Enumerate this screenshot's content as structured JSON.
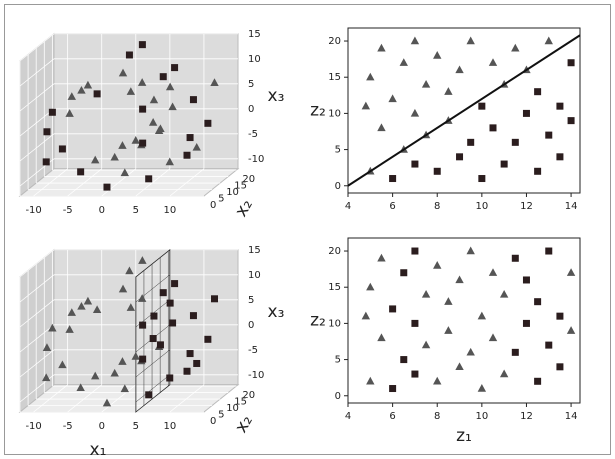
{
  "chart_data": [
    {
      "type": "scatter3d",
      "xlim": [
        -12,
        15
      ],
      "ylim": [
        0,
        21
      ],
      "zlim": [
        -12,
        15
      ],
      "xticks": [
        -10,
        -5,
        0,
        5,
        10
      ],
      "yticks": [
        0,
        5,
        10,
        15,
        20
      ],
      "zticks": [
        -10,
        -5,
        0,
        5,
        10,
        15
      ],
      "ylabel": "x₂",
      "zlabel": "x₃",
      "series": [
        {
          "marker": "triangle",
          "color": "#555555",
          "x": [
            1.42,
            1.42,
            3.9,
            3.9,
            5.76,
            6.35,
            6.35,
            5.28,
            5.28,
            2.6,
            2.6,
            -1.16,
            -5.12,
            -5.12,
            -8.2,
            -9.47,
            -5.0,
            0.05,
            5.46,
            10.13,
            11.79,
            0.42
          ],
          "y": [
            2,
            15,
            8,
            19,
            12,
            5,
            17,
            10,
            20,
            7,
            14,
            18,
            9,
            13,
            16,
            20,
            17,
            14,
            19,
            16,
            20,
            11
          ],
          "z": [
            -4.79,
            -4.79,
            -3.88,
            -3.88,
            -1.68,
            1.4,
            1.4,
            4.6,
            4.6,
            7.04,
            7.04,
            7.91,
            6.78,
            6.78,
            3.71,
            -0.71,
            -9.24,
            -11.0,
            -10.12,
            -6.44,
            5.46,
            -4.78
          ]
        },
        {
          "marker": "square",
          "color": "#2b1d1e",
          "x": [
            5.76,
            5.28,
            -1.16,
            -8.2,
            -9.47,
            -8.39,
            -8.39,
            -5.0,
            0.05,
            5.46,
            10.13,
            12.48,
            12.48,
            11.79,
            8.07,
            8.07,
            1.92,
            1.92
          ],
          "y": [
            1,
            3,
            2,
            4,
            6,
            1,
            11,
            8,
            3,
            6,
            10,
            2,
            13,
            7,
            4,
            11,
            9,
            17
          ],
          "z": [
            -1.68,
            4.6,
            7.91,
            3.71,
            -0.71,
            -5.44,
            -5.44,
            -9.24,
            -11.0,
            -10.12,
            -6.44,
            -0.83,
            -0.83,
            5.46,
            10.83,
            10.83,
            13.87,
            13.87
          ]
        }
      ]
    },
    {
      "type": "scatter",
      "xlim": [
        4,
        14.4
      ],
      "ylim": [
        -1,
        21.8
      ],
      "xticks": [
        4,
        6,
        8,
        10,
        12,
        14
      ],
      "yticks": [
        0,
        5,
        10,
        15,
        20
      ],
      "ylabel": "z₂",
      "line": {
        "color": "#111111",
        "x": [
          4,
          14.4
        ],
        "y": [
          0,
          20.8
        ]
      },
      "series": [
        {
          "marker": "triangle",
          "color": "#555555",
          "x": [
            5,
            5,
            5.5,
            5.5,
            6,
            6.5,
            6.5,
            7,
            7,
            7.5,
            7.5,
            8,
            8.5,
            8.5,
            9,
            9.5,
            10.5,
            11,
            11.5,
            12,
            13,
            4.8
          ],
          "y": [
            2,
            15,
            8,
            19,
            12,
            5,
            17,
            10,
            20,
            7,
            14,
            18,
            9,
            13,
            16,
            20,
            17,
            14,
            19,
            16,
            20,
            11
          ]
        },
        {
          "marker": "square",
          "color": "#2b1d1e",
          "x": [
            6,
            7,
            8,
            9,
            9.5,
            10,
            10,
            10.5,
            11,
            11.5,
            12,
            12.5,
            12.5,
            13,
            13.5,
            13.5,
            14,
            14
          ],
          "y": [
            1,
            3,
            2,
            4,
            6,
            1,
            11,
            8,
            3,
            6,
            10,
            2,
            13,
            7,
            4,
            11,
            9,
            17
          ]
        }
      ]
    },
    {
      "type": "scatter3d",
      "xlim": [
        -12,
        15
      ],
      "ylim": [
        0,
        21
      ],
      "zlim": [
        -12,
        15
      ],
      "xticks": [
        -10,
        -5,
        0,
        5,
        10
      ],
      "yticks": [
        0,
        5,
        10,
        15,
        20
      ],
      "zticks": [
        -10,
        -5,
        0,
        5,
        10,
        15
      ],
      "xlabel": "x₁",
      "ylabel": "x₂",
      "zlabel": "x₃",
      "plane_x": 5,
      "series": [
        {
          "marker": "triangle",
          "color": "#555555",
          "x": [
            1.42,
            1.42,
            3.9,
            3.9,
            2.6,
            2.6,
            -1.16,
            -1.16,
            -5.12,
            -5.12,
            -8.2,
            -8.2,
            -9.47,
            -9.47,
            -8.39,
            -8.39,
            -5.0,
            -5.0,
            0.05,
            0.05,
            1.92,
            1.92,
            0.42
          ],
          "y": [
            2,
            15,
            8,
            19,
            7,
            14,
            2,
            18,
            9,
            13,
            4,
            16,
            6,
            20,
            1,
            11,
            8,
            17,
            3,
            14,
            9,
            17,
            11
          ],
          "z": [
            -4.79,
            -4.79,
            -3.88,
            -3.88,
            7.04,
            7.04,
            7.91,
            7.91,
            6.78,
            6.78,
            3.71,
            3.71,
            -0.71,
            -0.71,
            -5.44,
            -5.44,
            -9.24,
            -9.24,
            -11.0,
            -11.0,
            13.87,
            13.87,
            -4.78
          ]
        },
        {
          "marker": "square",
          "color": "#2b1d1e",
          "x": [
            5.76,
            5.76,
            6.35,
            6.35,
            5.28,
            5.28,
            5.28,
            5.46,
            5.46,
            10.13,
            10.13,
            12.48,
            12.48,
            11.79,
            11.79,
            8.07,
            8.07
          ],
          "y": [
            1,
            12,
            5,
            17,
            3,
            10,
            20,
            6,
            19,
            10,
            16,
            2,
            13,
            7,
            20,
            4,
            11
          ],
          "z": [
            -1.68,
            -1.68,
            1.4,
            1.4,
            4.6,
            4.6,
            4.6,
            -10.12,
            -10.12,
            -6.44,
            -6.44,
            -0.83,
            -0.83,
            5.46,
            5.46,
            10.83,
            10.83
          ]
        }
      ]
    },
    {
      "type": "scatter",
      "xlim": [
        4,
        14.4
      ],
      "ylim": [
        -1,
        21.8
      ],
      "xticks": [
        4,
        6,
        8,
        10,
        12,
        14
      ],
      "yticks": [
        0,
        5,
        10,
        15,
        20
      ],
      "xlabel": "z₁",
      "ylabel": "z₂",
      "series": [
        {
          "marker": "triangle",
          "color": "#555555",
          "x": [
            5,
            5,
            5.5,
            5.5,
            7.5,
            7.5,
            8,
            8,
            8.5,
            8.5,
            9,
            9,
            9.5,
            9.5,
            10,
            10,
            10.5,
            10.5,
            11,
            11,
            14,
            14,
            4.8
          ],
          "y": [
            2,
            15,
            8,
            19,
            7,
            14,
            2,
            18,
            9,
            13,
            4,
            16,
            6,
            20,
            1,
            11,
            8,
            17,
            3,
            14,
            9,
            17,
            11
          ]
        },
        {
          "marker": "square",
          "color": "#2b1d1e",
          "x": [
            6,
            6,
            6.5,
            6.5,
            7,
            7,
            7,
            11.5,
            11.5,
            12,
            12,
            12.5,
            12.5,
            13,
            13,
            13.5,
            13.5
          ],
          "y": [
            1,
            12,
            5,
            17,
            3,
            10,
            20,
            6,
            19,
            10,
            16,
            2,
            13,
            7,
            20,
            4,
            11
          ]
        }
      ]
    }
  ]
}
